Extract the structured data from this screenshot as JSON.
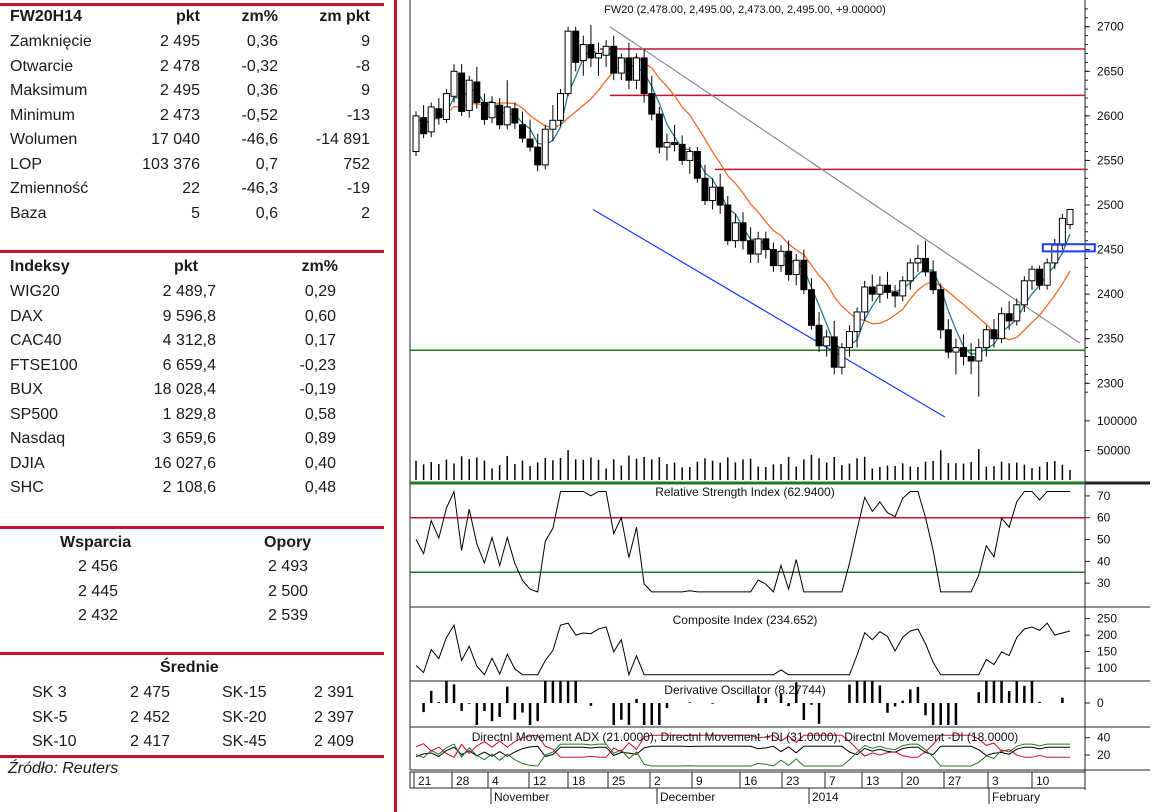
{
  "instrument": {
    "header": [
      "FW20H14",
      "pkt",
      "zm%",
      "zm pkt"
    ],
    "rows": [
      [
        "Zamknięcie",
        "2 495",
        "0,36",
        "9"
      ],
      [
        "Otwarcie",
        "2 478",
        "-0,32",
        "-8"
      ],
      [
        "Maksimum",
        "2 495",
        "0,36",
        "9"
      ],
      [
        "Minimum",
        "2 473",
        "-0,52",
        "-13"
      ],
      [
        "Wolumen",
        "17 040",
        "-46,6",
        "-14 891"
      ],
      [
        "LOP",
        "103 376",
        "0,7",
        "752"
      ],
      [
        "Zmienność",
        "22",
        "-46,3",
        "-19"
      ],
      [
        "Baza",
        "5",
        "0,6",
        "2"
      ]
    ]
  },
  "indices": {
    "header": [
      "Indeksy",
      "pkt",
      "zm%"
    ],
    "rows": [
      [
        "WIG20",
        "2 489,7",
        "0,29"
      ],
      [
        "DAX",
        "9 596,8",
        "0,60"
      ],
      [
        "CAC40",
        "4 312,8",
        "0,17"
      ],
      [
        "FTSE100",
        "6 659,4",
        "-0,23"
      ],
      [
        "BUX",
        "18 028,4",
        "-0,19"
      ],
      [
        "SP500",
        "1 829,8",
        "0,58"
      ],
      [
        "Nasdaq",
        "3 659,6",
        "0,89"
      ],
      [
        "DJIA",
        "16 027,6",
        "0,40"
      ],
      [
        "SHC",
        "2 108,6",
        "0,48"
      ]
    ]
  },
  "levels": {
    "header": [
      "Wsparcia",
      "Opory"
    ],
    "rows": [
      [
        "2 456",
        "2 493"
      ],
      [
        "2 445",
        "2 500"
      ],
      [
        "2 432",
        "2 539"
      ]
    ]
  },
  "averages": {
    "title": "Średnie",
    "rows": [
      [
        "SK 3",
        "2 475",
        "SK-15",
        "2 391"
      ],
      [
        "SK-5",
        "2 452",
        "SK-20",
        "2 397"
      ],
      [
        "SK-10",
        "2 417",
        "SK-45",
        "2 409"
      ]
    ]
  },
  "source": "Źródło: Reuters",
  "colors": {
    "brand_red": "#c8102e",
    "support_green": "#1f7a1f",
    "resistance_red": "#c8102e",
    "channel_blue": "#1a3cff",
    "sma_short": "#2a7a8c",
    "sma_long": "#f06b2a"
  },
  "chart_data": {
    "type": "candlestick",
    "title": "FW20 (2,478.00, 2,495.00, 2,473.00, 2,495.00, +9.00000)",
    "ylim": [
      2270,
      2730
    ],
    "yticks": [
      2300,
      2350,
      2400,
      2450,
      2500,
      2550,
      2600,
      2650,
      2700
    ],
    "x_day_labels": [
      "21",
      "28",
      "4",
      "12",
      "18",
      "25",
      "2",
      "9",
      "16",
      "23",
      "7",
      "13",
      "20",
      "27",
      "3",
      "10"
    ],
    "x_month_labels": [
      "November",
      "December",
      "2014",
      "February"
    ],
    "horizontal_lines": {
      "resistance": [
        2675,
        2623,
        2540
      ],
      "support": [
        2337
      ]
    },
    "candles": [
      [
        2560,
        2605,
        2555,
        2600
      ],
      [
        2598,
        2612,
        2575,
        2580
      ],
      [
        2582,
        2615,
        2576,
        2610
      ],
      [
        2608,
        2620,
        2590,
        2598
      ],
      [
        2596,
        2630,
        2592,
        2625
      ],
      [
        2622,
        2658,
        2615,
        2650
      ],
      [
        2648,
        2658,
        2600,
        2605
      ],
      [
        2606,
        2645,
        2598,
        2640
      ],
      [
        2638,
        2655,
        2608,
        2615
      ],
      [
        2615,
        2625,
        2590,
        2596
      ],
      [
        2598,
        2622,
        2592,
        2615
      ],
      [
        2612,
        2620,
        2585,
        2590
      ],
      [
        2590,
        2640,
        2585,
        2610
      ],
      [
        2608,
        2615,
        2585,
        2592
      ],
      [
        2590,
        2605,
        2570,
        2575
      ],
      [
        2574,
        2596,
        2560,
        2565
      ],
      [
        2565,
        2580,
        2538,
        2545
      ],
      [
        2545,
        2590,
        2540,
        2585
      ],
      [
        2585,
        2612,
        2572,
        2595
      ],
      [
        2595,
        2630,
        2588,
        2625
      ],
      [
        2625,
        2700,
        2622,
        2695
      ],
      [
        2695,
        2700,
        2650,
        2660
      ],
      [
        2662,
        2690,
        2645,
        2680
      ],
      [
        2680,
        2702,
        2655,
        2665
      ],
      [
        2665,
        2682,
        2645,
        2670
      ],
      [
        2668,
        2685,
        2655,
        2678
      ],
      [
        2678,
        2690,
        2640,
        2648
      ],
      [
        2648,
        2670,
        2640,
        2665
      ],
      [
        2665,
        2682,
        2630,
        2640
      ],
      [
        2640,
        2670,
        2630,
        2665
      ],
      [
        2665,
        2675,
        2615,
        2625
      ],
      [
        2625,
        2645,
        2595,
        2602
      ],
      [
        2602,
        2610,
        2558,
        2565
      ],
      [
        2565,
        2580,
        2550,
        2570
      ],
      [
        2570,
        2590,
        2560,
        2568
      ],
      [
        2568,
        2578,
        2545,
        2550
      ],
      [
        2550,
        2565,
        2535,
        2560
      ],
      [
        2560,
        2565,
        2525,
        2530
      ],
      [
        2530,
        2545,
        2500,
        2505
      ],
      [
        2505,
        2530,
        2495,
        2520
      ],
      [
        2520,
        2535,
        2490,
        2500
      ],
      [
        2500,
        2510,
        2455,
        2460
      ],
      [
        2460,
        2490,
        2452,
        2480
      ],
      [
        2480,
        2492,
        2450,
        2460
      ],
      [
        2460,
        2475,
        2435,
        2445
      ],
      [
        2445,
        2470,
        2435,
        2462
      ],
      [
        2462,
        2470,
        2440,
        2450
      ],
      [
        2450,
        2458,
        2425,
        2432
      ],
      [
        2432,
        2455,
        2425,
        2448
      ],
      [
        2448,
        2460,
        2415,
        2422
      ],
      [
        2422,
        2445,
        2410,
        2438
      ],
      [
        2438,
        2450,
        2400,
        2405
      ],
      [
        2405,
        2418,
        2360,
        2365
      ],
      [
        2365,
        2380,
        2335,
        2342
      ],
      [
        2342,
        2360,
        2330,
        2352
      ],
      [
        2352,
        2370,
        2310,
        2318
      ],
      [
        2318,
        2345,
        2310,
        2340
      ],
      [
        2340,
        2365,
        2330,
        2358
      ],
      [
        2358,
        2385,
        2340,
        2380
      ],
      [
        2380,
        2415,
        2370,
        2408
      ],
      [
        2408,
        2422,
        2392,
        2400
      ],
      [
        2400,
        2420,
        2390,
        2410
      ],
      [
        2410,
        2425,
        2395,
        2402
      ],
      [
        2402,
        2410,
        2385,
        2398
      ],
      [
        2398,
        2420,
        2392,
        2415
      ],
      [
        2415,
        2440,
        2405,
        2435
      ],
      [
        2435,
        2455,
        2425,
        2440
      ],
      [
        2440,
        2460,
        2420,
        2425
      ],
      [
        2425,
        2438,
        2400,
        2405
      ],
      [
        2405,
        2412,
        2350,
        2360
      ],
      [
        2360,
        2372,
        2328,
        2335
      ],
      [
        2335,
        2350,
        2310,
        2340
      ],
      [
        2340,
        2355,
        2320,
        2330
      ],
      [
        2330,
        2345,
        2310,
        2325
      ],
      [
        2325,
        2350,
        2285,
        2340
      ],
      [
        2340,
        2365,
        2330,
        2360
      ],
      [
        2360,
        2372,
        2340,
        2350
      ],
      [
        2350,
        2385,
        2345,
        2378
      ],
      [
        2378,
        2392,
        2360,
        2370
      ],
      [
        2370,
        2395,
        2365,
        2388
      ],
      [
        2388,
        2420,
        2380,
        2415
      ],
      [
        2415,
        2432,
        2405,
        2428
      ],
      [
        2428,
        2432,
        2405,
        2410
      ],
      [
        2410,
        2440,
        2405,
        2435
      ],
      [
        2435,
        2462,
        2428,
        2455
      ],
      [
        2455,
        2490,
        2450,
        2485
      ],
      [
        2478,
        2495,
        2473,
        2495
      ]
    ],
    "volume_ticks": [
      50000,
      100000
    ],
    "rsi": {
      "title": "Relative Strength Index (62.9400)",
      "levels": [
        30,
        40,
        50,
        60,
        70
      ],
      "lines": [
        60,
        35
      ]
    },
    "composite": {
      "title": "Composite Index (234.652)",
      "levels": [
        100,
        150,
        200,
        250
      ]
    },
    "derivative": {
      "title": "Derivative Oscillator (8.27744)",
      "levels": [
        0
      ]
    },
    "dmi": {
      "title": "Directnl Movement ADX (21.0000), Directnl Movement +DI (31.0000), Directnl Movement -DI (18.0000)",
      "levels": [
        20,
        40
      ]
    }
  }
}
